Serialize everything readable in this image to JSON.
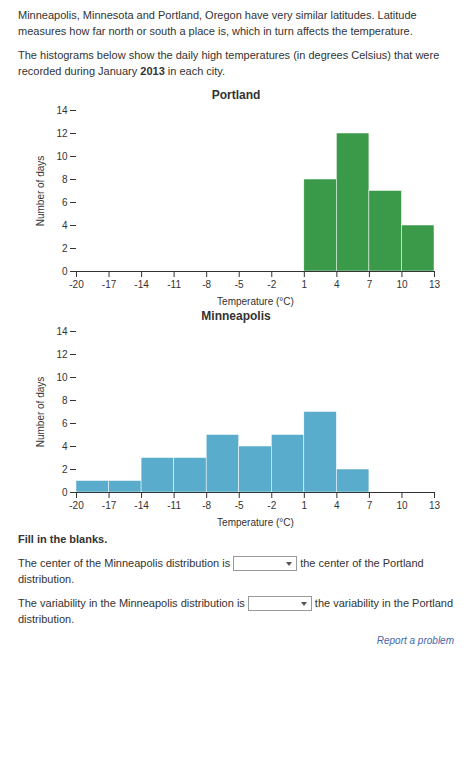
{
  "chart_data": [
    {
      "type": "histogram",
      "title": "Portland",
      "bins": [
        -20,
        -17,
        -14,
        -11,
        -8,
        -5,
        -2,
        1,
        4,
        7,
        10,
        13
      ],
      "values": [
        0,
        0,
        0,
        0,
        0,
        0,
        0,
        8,
        12,
        7,
        4
      ],
      "color": "#3a9a4a",
      "xlabel": "Temperature (°C)",
      "ylabel": "Number of days",
      "xlim": [
        -20,
        13
      ],
      "xticks": [
        -20,
        -17,
        -14,
        -11,
        -8,
        -5,
        -2,
        1,
        4,
        7,
        10,
        13
      ],
      "ylim": [
        0,
        14
      ],
      "yticks": [
        0,
        2,
        4,
        6,
        8,
        10,
        12,
        14
      ],
      "grid": true,
      "annotations": [
        "Minneapolis, Minnesota and Portland, Oregon have very similar latitudes.\nLatitude measures how far north or south a place is, which in turn affects\nthe temperature.",
        "The histograms below show the daily high temperatures (in degrees\nCelsius) that were recorded during January ",
        "2013",
        " in each city."
      ]
    },
    {
      "type": "histogram",
      "title": "Minneapolis",
      "bins": [
        -20,
        -17,
        -14,
        -11,
        -8,
        -5,
        -2,
        1,
        4,
        7,
        10,
        13
      ],
      "values": [
        1,
        1,
        3,
        3,
        5,
        4,
        5,
        7,
        2,
        0,
        0
      ],
      "color": "#5aaccc",
      "xlabel": "Temperature (°C)",
      "ylabel": "Number of days",
      "xlim": [
        -20,
        13
      ],
      "xticks": [
        -20,
        -17,
        -14,
        -11,
        -8,
        -5,
        -2,
        1,
        4,
        7,
        10,
        13
      ],
      "ylim": [
        0,
        14
      ],
      "yticks": [
        0,
        2,
        4,
        6,
        8,
        10,
        12,
        14
      ],
      "grid": true,
      "annotations": [
        "Fill in the blanks.",
        "The center of the Minneapolis distribution is",
        "the center of the",
        "Portland distribution.",
        "The variability in the Minneapolis distribution is",
        "the variability in",
        "the Portland distribution.",
        "Report a problem"
      ]
    }
  ]
}
